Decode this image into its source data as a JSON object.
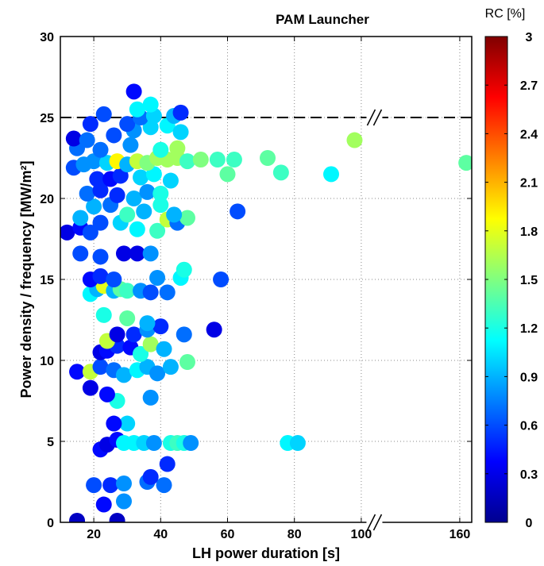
{
  "chart_data": {
    "type": "scatter",
    "title": "PAM Launcher",
    "xlabel": "LH power duration [s]",
    "ylabel": "Power density / frequency [MW/m²]",
    "colorbar_label": "RC [%]",
    "colormap": "jet",
    "clim": [
      0,
      3
    ],
    "colorbar_ticks": [
      "3",
      "2.7",
      "2.4",
      "2.1",
      "1.8",
      "1.5",
      "1.2",
      "0.9",
      "0.6",
      "0.3",
      "0"
    ],
    "xlim": [
      10,
      170
    ],
    "x_break": {
      "from": 100,
      "to": 105,
      "marker": "//"
    },
    "x_ticks": [
      {
        "value": 20,
        "label": "20"
      },
      {
        "value": 40,
        "label": "40"
      },
      {
        "value": 60,
        "label": "60"
      },
      {
        "value": 80,
        "label": "80"
      },
      {
        "value": 100,
        "label": "100"
      },
      {
        "value": 160,
        "label": "160"
      }
    ],
    "ylim": [
      0,
      30
    ],
    "y_ticks": [
      "0",
      "5",
      "10",
      "15",
      "20",
      "25",
      "30"
    ],
    "reference_line": {
      "y": 25,
      "style": "dashed"
    },
    "grid": true,
    "points": [
      [
        15,
        0.1,
        0.2
      ],
      [
        27,
        0.1,
        0.2
      ],
      [
        23,
        1.1,
        0.4
      ],
      [
        29,
        1.3,
        0.8
      ],
      [
        20,
        2.3,
        0.6
      ],
      [
        25,
        2.3,
        0.5
      ],
      [
        29,
        2.4,
        0.8
      ],
      [
        36,
        2.5,
        0.7
      ],
      [
        41,
        2.3,
        0.7
      ],
      [
        37,
        2.8,
        0.5
      ],
      [
        42,
        3.6,
        0.5
      ],
      [
        22,
        4.5,
        0.4
      ],
      [
        24,
        4.8,
        0.3
      ],
      [
        27,
        5.1,
        0.4
      ],
      [
        29,
        4.9,
        1.1
      ],
      [
        32,
        4.9,
        1.1
      ],
      [
        35,
        4.9,
        1.0
      ],
      [
        38,
        4.9,
        0.8
      ],
      [
        43,
        4.9,
        1.2
      ],
      [
        45,
        4.9,
        1.3
      ],
      [
        47,
        4.9,
        1.2
      ],
      [
        49,
        4.9,
        0.8
      ],
      [
        78,
        4.9,
        1.1
      ],
      [
        81,
        4.9,
        1.0
      ],
      [
        30,
        6.1,
        1.0
      ],
      [
        26,
        6.1,
        0.4
      ],
      [
        27,
        7.5,
        1.2
      ],
      [
        24,
        7.9,
        0.4
      ],
      [
        19,
        8.3,
        0.3
      ],
      [
        37,
        7.7,
        0.8
      ],
      [
        15,
        9.3,
        0.4
      ],
      [
        19,
        9.3,
        1.7
      ],
      [
        22,
        9.6,
        0.6
      ],
      [
        26,
        9.4,
        0.7
      ],
      [
        29,
        9.1,
        0.9
      ],
      [
        33,
        9.4,
        1.1
      ],
      [
        36,
        9.6,
        0.9
      ],
      [
        39,
        9.2,
        0.8
      ],
      [
        43,
        9.6,
        0.9
      ],
      [
        48,
        9.9,
        1.4
      ],
      [
        22,
        10.5,
        0.3
      ],
      [
        24,
        10.6,
        0.4
      ],
      [
        27,
        10.9,
        0.5
      ],
      [
        31,
        10.8,
        0.4
      ],
      [
        34,
        10.4,
        1.2
      ],
      [
        37,
        11.0,
        1.6
      ],
      [
        41,
        10.7,
        0.9
      ],
      [
        24,
        11.2,
        1.7
      ],
      [
        27,
        11.6,
        0.3
      ],
      [
        32,
        11.6,
        0.5
      ],
      [
        36,
        11.9,
        0.8
      ],
      [
        40,
        12.1,
        0.5
      ],
      [
        47,
        11.6,
        0.7
      ],
      [
        56,
        11.9,
        0.3
      ],
      [
        30,
        12.6,
        1.4
      ],
      [
        23,
        12.8,
        1.2
      ],
      [
        36,
        12.3,
        0.9
      ],
      [
        19,
        14.1,
        1.1
      ],
      [
        21,
        14.4,
        0.9
      ],
      [
        23,
        14.6,
        1.8
      ],
      [
        26,
        14.3,
        0.9
      ],
      [
        28,
        14.4,
        1.4
      ],
      [
        30,
        14.3,
        1.3
      ],
      [
        34,
        14.3,
        0.8
      ],
      [
        37,
        14.2,
        0.6
      ],
      [
        42,
        14.2,
        0.7
      ],
      [
        19,
        15.0,
        0.4
      ],
      [
        22,
        15.2,
        0.5
      ],
      [
        26,
        15.0,
        0.6
      ],
      [
        39,
        15.1,
        0.8
      ],
      [
        46,
        15.1,
        1.1
      ],
      [
        47,
        15.6,
        1.2
      ],
      [
        58,
        15.0,
        0.6
      ],
      [
        16,
        16.6,
        0.6
      ],
      [
        22,
        16.4,
        0.6
      ],
      [
        29,
        16.6,
        0.3
      ],
      [
        33,
        16.6,
        0.3
      ],
      [
        37,
        16.6,
        0.8
      ],
      [
        12,
        17.9,
        0.3
      ],
      [
        16,
        18.2,
        0.4
      ],
      [
        19,
        17.9,
        0.6
      ],
      [
        22,
        18.5,
        0.6
      ],
      [
        28,
        18.5,
        1.0
      ],
      [
        33,
        18.1,
        1.1
      ],
      [
        39,
        18.0,
        1.3
      ],
      [
        42,
        18.7,
        1.7
      ],
      [
        45,
        18.5,
        0.7
      ],
      [
        48,
        18.8,
        1.4
      ],
      [
        16,
        18.8,
        0.9
      ],
      [
        20,
        19.5,
        0.9
      ],
      [
        25,
        19.6,
        0.7
      ],
      [
        30,
        19.0,
        1.3
      ],
      [
        35,
        19.2,
        0.9
      ],
      [
        40,
        19.6,
        1.2
      ],
      [
        44,
        19.0,
        0.9
      ],
      [
        63,
        19.2,
        0.6
      ],
      [
        18,
        20.3,
        0.7
      ],
      [
        22,
        20.5,
        0.5
      ],
      [
        27,
        20.2,
        0.5
      ],
      [
        32,
        20.0,
        0.9
      ],
      [
        36,
        20.4,
        0.8
      ],
      [
        40,
        20.3,
        1.2
      ],
      [
        21,
        21.2,
        0.5
      ],
      [
        25,
        21.2,
        0.4
      ],
      [
        28,
        21.4,
        0.5
      ],
      [
        34,
        21.3,
        1.0
      ],
      [
        38,
        21.5,
        1.1
      ],
      [
        43,
        21.1,
        1.0
      ],
      [
        60,
        21.5,
        1.4
      ],
      [
        76,
        21.6,
        1.3
      ],
      [
        91,
        21.5,
        1.1
      ],
      [
        14,
        21.9,
        0.6
      ],
      [
        17,
        22.1,
        0.8
      ],
      [
        20,
        22.3,
        0.8
      ],
      [
        24,
        22.2,
        1.0
      ],
      [
        27,
        22.3,
        1.9
      ],
      [
        30,
        22.1,
        0.9
      ],
      [
        33,
        22.3,
        1.7
      ],
      [
        36,
        22.2,
        1.5
      ],
      [
        39,
        22.5,
        1.6
      ],
      [
        42,
        22.4,
        1.6
      ],
      [
        45,
        22.5,
        1.6
      ],
      [
        48,
        22.3,
        1.3
      ],
      [
        52,
        22.4,
        1.5
      ],
      [
        57,
        22.4,
        1.3
      ],
      [
        62,
        22.4,
        1.3
      ],
      [
        72,
        22.5,
        1.4
      ],
      [
        165,
        22.2,
        1.4
      ],
      [
        15,
        23.1,
        0.7
      ],
      [
        22,
        23.0,
        0.7
      ],
      [
        31,
        23.3,
        0.8
      ],
      [
        40,
        23.0,
        1.2
      ],
      [
        45,
        23.1,
        1.6
      ],
      [
        98,
        23.6,
        1.6
      ],
      [
        14,
        23.7,
        0.3
      ],
      [
        18,
        23.6,
        0.7
      ],
      [
        26,
        23.9,
        0.6
      ],
      [
        32,
        24.2,
        0.8
      ],
      [
        37,
        24.4,
        1.0
      ],
      [
        42,
        24.5,
        1.1
      ],
      [
        46,
        24.1,
        1.0
      ],
      [
        19,
        24.6,
        0.5
      ],
      [
        23,
        25.2,
        0.6
      ],
      [
        30,
        24.6,
        0.6
      ],
      [
        34,
        25.0,
        0.7
      ],
      [
        38,
        25.1,
        1.0
      ],
      [
        44,
        25.1,
        0.9
      ],
      [
        46,
        25.3,
        0.5
      ],
      [
        33,
        25.5,
        1.1
      ],
      [
        37,
        25.8,
        1.1
      ],
      [
        32,
        26.6,
        0.4
      ]
    ]
  }
}
